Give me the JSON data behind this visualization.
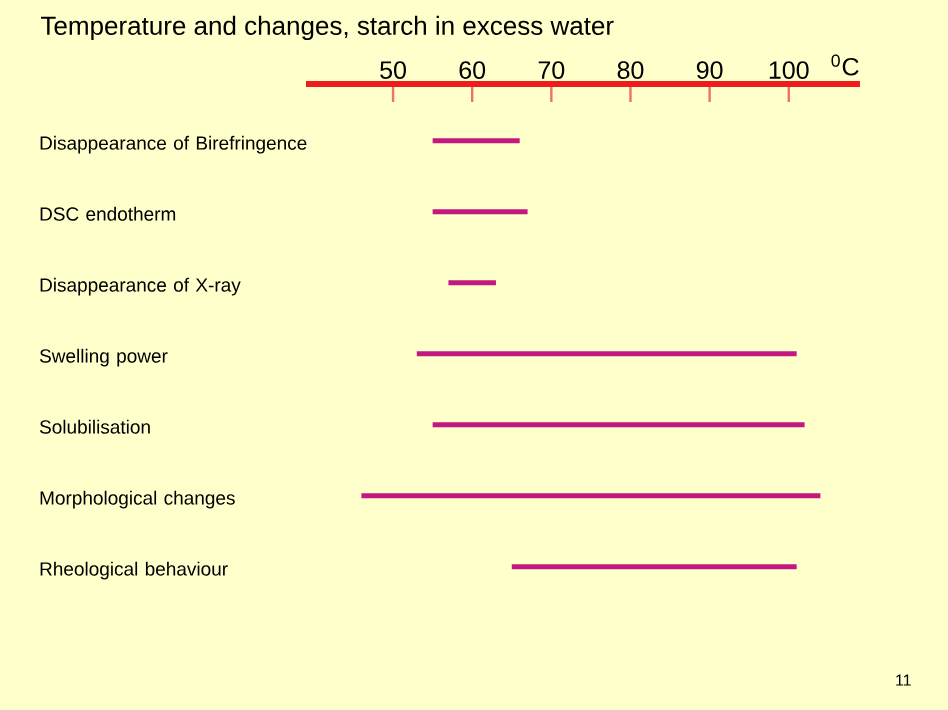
{
  "chart_data": {
    "type": "bar",
    "orientation": "horizontal",
    "title": "Temperature and changes, starch in excess water",
    "xlabel": "$^{0}$C",
    "categories": [
      "Disappearance of Birefringence",
      "DSC endotherm",
      "Disappearance of X-ray",
      "Swelling power",
      "Solubilisation",
      "Morphological changes",
      "Rheological behaviour"
    ],
    "base": [
      55,
      55,
      57,
      53,
      55,
      46,
      65
    ],
    "values": [
      11,
      12,
      6,
      48,
      47,
      58,
      36
    ],
    "color": "#c2187f",
    "xlim": [
      39,
      109
    ],
    "xticks": [
      50,
      60,
      70,
      80,
      90,
      100
    ],
    "grid": false,
    "annotations": [
      "11"
    ]
  }
}
